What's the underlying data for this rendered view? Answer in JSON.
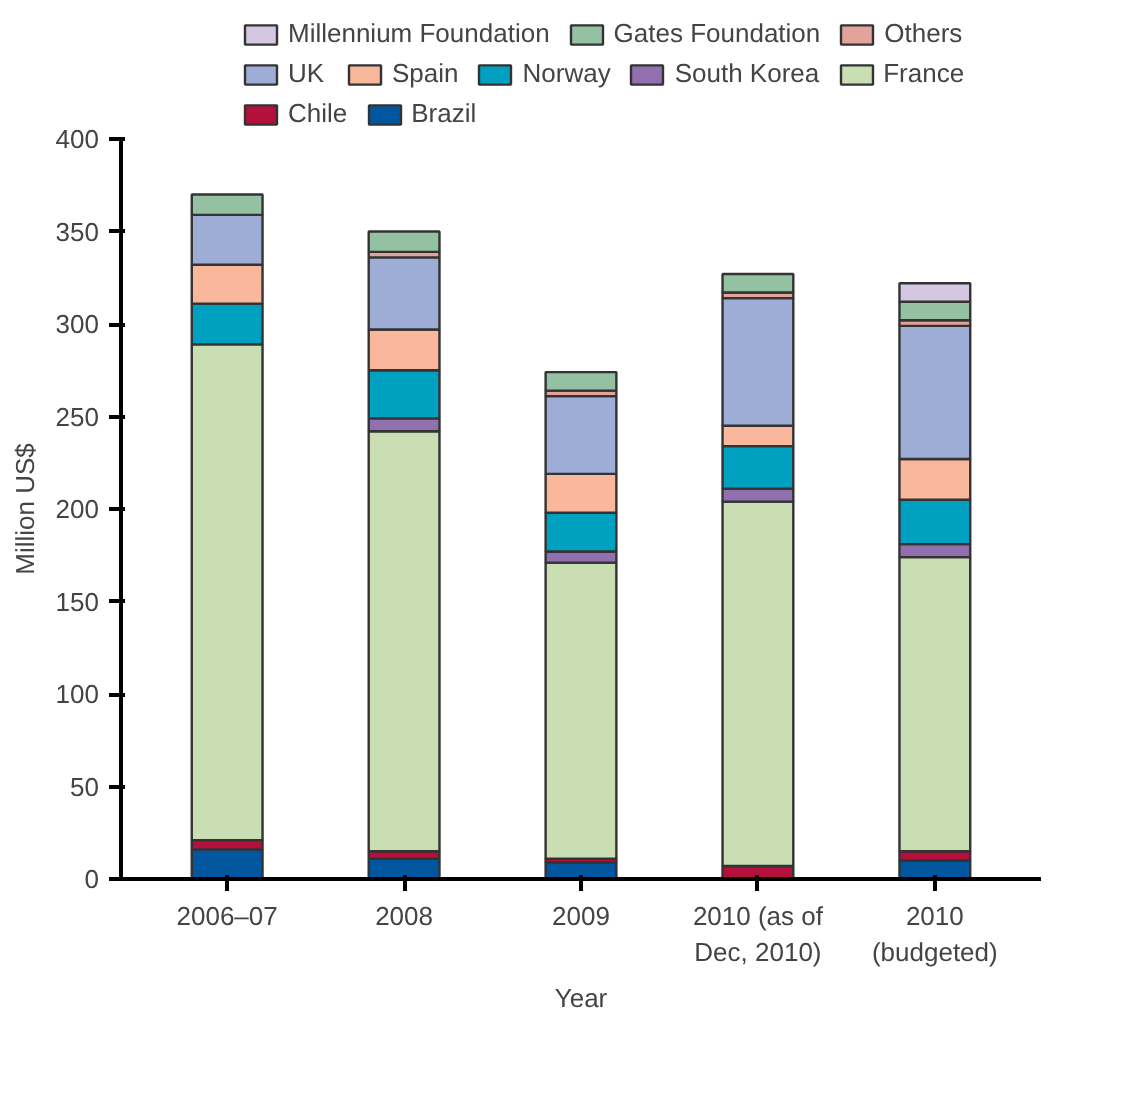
{
  "chart_data": {
    "type": "bar",
    "stacked": true,
    "xlabel": "Year",
    "ylabel": "Million US$",
    "categories": [
      "2006–07",
      "2008",
      "2009",
      "2010 (as of\nDec, 2010)",
      "2010\n(budgeted)"
    ],
    "ylim": [
      0,
      400
    ],
    "yticks": [
      0,
      50,
      100,
      150,
      200,
      250,
      300,
      350,
      400
    ],
    "grid": false,
    "legend": "top",
    "series": [
      {
        "name": "Brazil",
        "color": "#0057a0",
        "values": [
          16,
          11,
          9,
          0,
          10
        ]
      },
      {
        "name": "Chile",
        "color": "#b5103c",
        "values": [
          5,
          4,
          2,
          7,
          5
        ]
      },
      {
        "name": "France",
        "color": "#c9deb2",
        "values": [
          268,
          227,
          160,
          197,
          159
        ]
      },
      {
        "name": "South Korea",
        "color": "#9270b0",
        "values": [
          0,
          7,
          6,
          7,
          7
        ]
      },
      {
        "name": "Norway",
        "color": "#00a0c0",
        "values": [
          22,
          26,
          21,
          23,
          24
        ]
      },
      {
        "name": "Spain",
        "color": "#f9b89c",
        "values": [
          21,
          22,
          21,
          11,
          22
        ]
      },
      {
        "name": "UK",
        "color": "#9eadd6",
        "values": [
          27,
          39,
          42,
          69,
          72
        ]
      },
      {
        "name": "Others",
        "color": "#e3a39a",
        "values": [
          0,
          3,
          3,
          3,
          3
        ]
      },
      {
        "name": "Gates Foundation",
        "color": "#93c1a2",
        "values": [
          11,
          11,
          10,
          10,
          10
        ]
      },
      {
        "name": "Millennium Foundation",
        "color": "#d5c6e1",
        "values": [
          0,
          0,
          0,
          0,
          10
        ]
      }
    ]
  }
}
